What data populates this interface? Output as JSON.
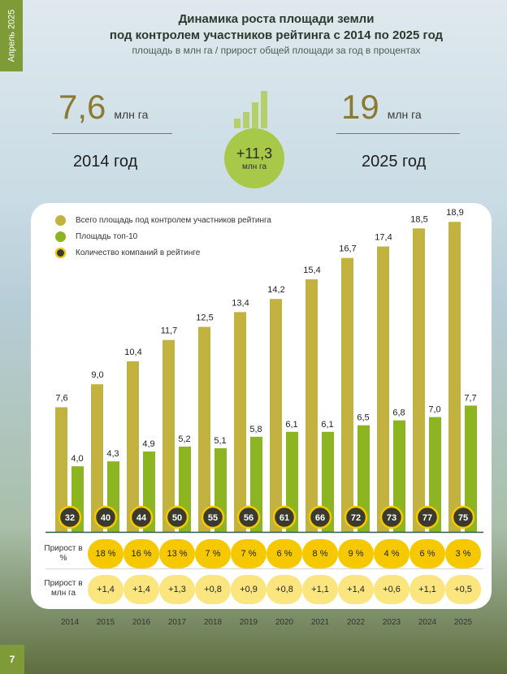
{
  "side_tab": "Апрель 2025",
  "page_number": "7",
  "title": {
    "line1": "Динамика роста площади земли",
    "line2": "под контролем участников рейтинга с 2014 по 2025 год",
    "subtitle": "площадь в млн га / прирост общей площади за год в процентах"
  },
  "stats": {
    "start_value": "7,6",
    "start_unit": "млн га",
    "start_year": "2014 год",
    "end_value": "19",
    "end_unit": "млн га",
    "end_year": "2025 год",
    "growth_value": "+11,3",
    "growth_unit": "млн га"
  },
  "colors": {
    "total": "#c2b23f",
    "top10": "#8db522",
    "companies": "#3a3a2e",
    "pct_pill": "#f5c800",
    "abs_pill": "#fbe57f"
  },
  "legend": [
    {
      "label": "Всего площадь под контролем участников рейтинга",
      "color": "#c2b23f"
    },
    {
      "label": "Площадь топ-10",
      "color": "#8db522"
    },
    {
      "label": "Количество компаний в рейтинге",
      "color": "#3a3a2e"
    }
  ],
  "row_labels": {
    "pct": "Прирост в %",
    "abs": "Прирост в млн га"
  },
  "chart_data": {
    "type": "bar",
    "categories": [
      "2014",
      "2015",
      "2016",
      "2017",
      "2018",
      "2019",
      "2020",
      "2021",
      "2022",
      "2023",
      "2024",
      "2025"
    ],
    "series": [
      {
        "name": "Всего площадь под контролем участников рейтинга",
        "values": [
          7.6,
          9.0,
          10.4,
          11.7,
          12.5,
          13.4,
          14.2,
          15.4,
          16.7,
          17.4,
          18.5,
          18.9
        ],
        "labels": [
          "7,6",
          "9,0",
          "10,4",
          "11,7",
          "12,5",
          "13,4",
          "14,2",
          "15,4",
          "16,7",
          "17,4",
          "18,5",
          "18,9"
        ]
      },
      {
        "name": "Площадь топ-10",
        "values": [
          4.0,
          4.3,
          4.9,
          5.2,
          5.1,
          5.8,
          6.1,
          6.1,
          6.5,
          6.8,
          7.0,
          7.7
        ],
        "labels": [
          "4,0",
          "4,3",
          "4,9",
          "5,2",
          "5,1",
          "5,8",
          "6,1",
          "6,1",
          "6,5",
          "6,8",
          "7,0",
          "7,7"
        ]
      },
      {
        "name": "Количество компаний в рейтинге",
        "values": [
          32,
          40,
          44,
          50,
          55,
          56,
          61,
          66,
          72,
          73,
          77,
          75
        ]
      }
    ],
    "growth_pct": [
      "18 %",
      "16 %",
      "13 %",
      "7 %",
      "7 %",
      "6 %",
      "8 %",
      "9 %",
      "4 %",
      "6 %",
      "3 %"
    ],
    "growth_abs": [
      "+1,4",
      "+1,4",
      "+1,3",
      "+0,8",
      "+0,9",
      "+0,8",
      "+1,1",
      "+1,4",
      "+0,6",
      "+1,1",
      "+0,5"
    ]
  }
}
